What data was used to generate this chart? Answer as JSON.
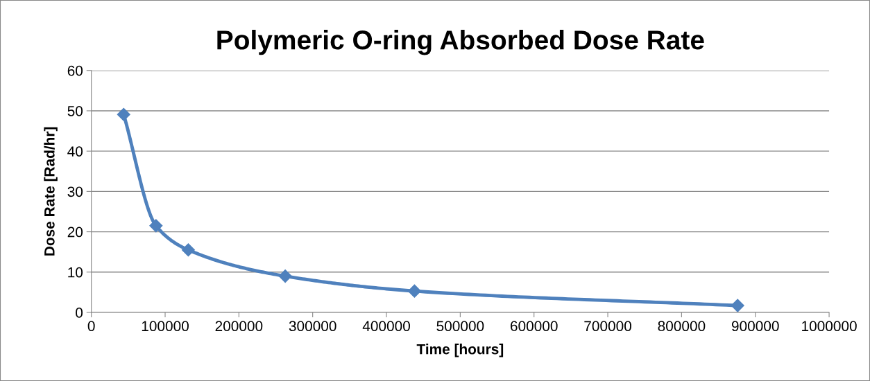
{
  "chart_data": {
    "type": "line",
    "title": "Polymeric O-ring Absorbed Dose Rate",
    "xlabel": "Time [hours]",
    "ylabel": "Dose Rate [Rad/hr]",
    "x": [
      43800,
      87600,
      131400,
      262800,
      438000,
      876000
    ],
    "series": [
      {
        "color": "#4f81bd",
        "values": [
          49.1,
          21.5,
          15.5,
          9.0,
          5.3,
          1.7
        ]
      }
    ],
    "xlim": [
      0,
      1000000
    ],
    "xticks": [
      0,
      100000,
      200000,
      300000,
      400000,
      500000,
      600000,
      700000,
      800000,
      900000,
      1000000
    ],
    "ylim": [
      0,
      60
    ],
    "yticks": [
      0,
      10,
      20,
      30,
      40,
      50,
      60
    ],
    "grid": "y",
    "marker": "diamond",
    "line_style": "solid"
  }
}
